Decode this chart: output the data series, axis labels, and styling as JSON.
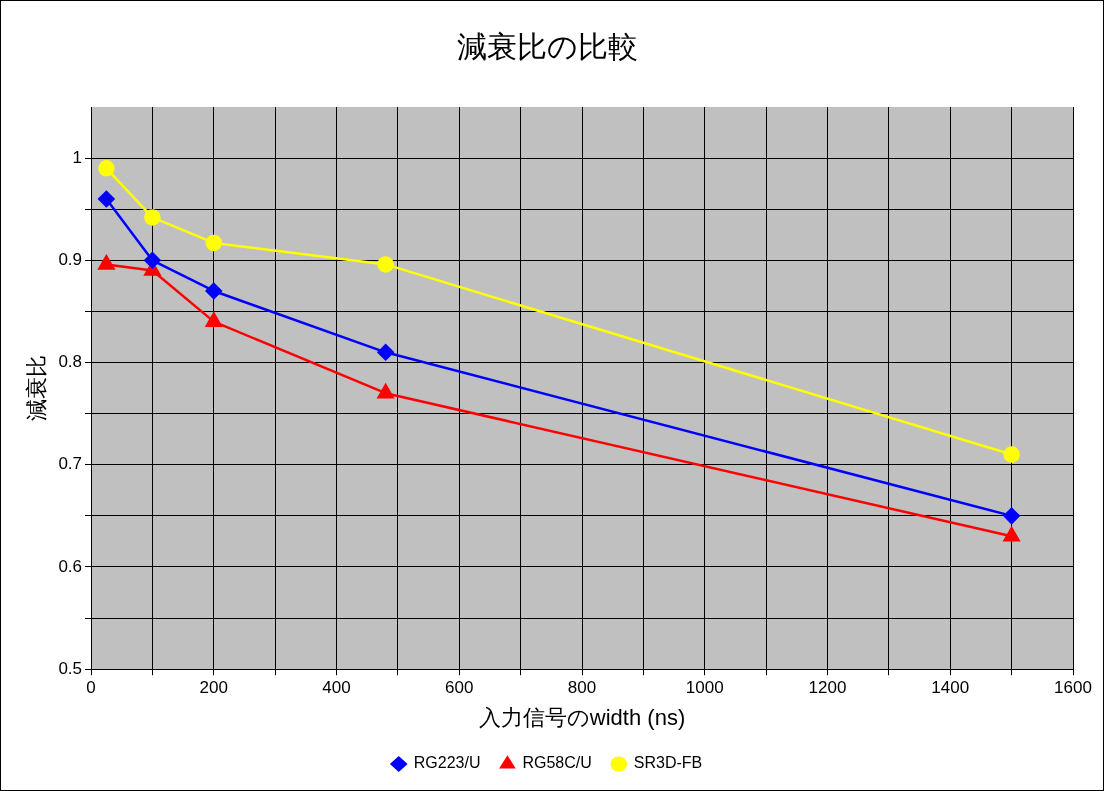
{
  "chart_data": {
    "type": "line",
    "title": "減衰比の比較",
    "xlabel": "入力信号のwidth (ns)",
    "ylabel": "減衰比",
    "x": [
      25,
      100,
      200,
      480,
      1500
    ],
    "series": [
      {
        "name": "RG223/U",
        "color": "#0000ff",
        "marker": "diamond",
        "values": [
          0.96,
          0.9,
          0.87,
          0.81,
          0.65
        ]
      },
      {
        "name": "RG58C/U",
        "color": "#ff0000",
        "marker": "triangle",
        "values": [
          0.896,
          0.89,
          0.84,
          0.77,
          0.63
        ]
      },
      {
        "name": "SR3D-FB",
        "color": "#ffff00",
        "marker": "circle",
        "values": [
          0.99,
          0.942,
          0.917,
          0.896,
          0.71
        ]
      }
    ],
    "xlim": [
      0,
      1600
    ],
    "xticks": [
      0,
      {
        "value": 100,
        "label": null
      },
      200,
      {
        "value": 300,
        "label": null
      },
      400,
      {
        "value": 500,
        "label": null
      },
      600,
      {
        "value": 700,
        "label": null
      },
      800,
      {
        "value": 900,
        "label": null
      },
      1000,
      {
        "value": 1100,
        "label": null
      },
      1200,
      {
        "value": 1300,
        "label": null
      },
      1400,
      {
        "value": 1500,
        "label": null
      },
      1600
    ],
    "ylim": [
      0.5,
      1.05
    ],
    "yticks": [
      0.5,
      {
        "value": 0.55,
        "label": null
      },
      0.6,
      {
        "value": 0.65,
        "label": null
      },
      0.7,
      {
        "value": 0.75,
        "label": null
      },
      0.8,
      {
        "value": 0.85,
        "label": null
      },
      0.9,
      {
        "value": 0.95,
        "label": null
      },
      1
    ],
    "grid": true,
    "legend": "bottom",
    "line_style": "solid"
  }
}
